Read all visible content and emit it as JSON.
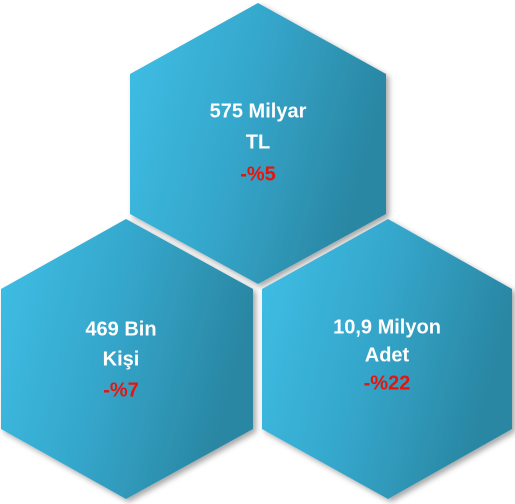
{
  "nodes": [
    {
      "lines": [
        "575 Milyar",
        "TL"
      ],
      "change": "-%5"
    },
    {
      "lines": [
        "469 Bin",
        "Kişi"
      ],
      "change": "-%7"
    },
    {
      "lines": [
        "10,9 Milyon",
        "Adet"
      ],
      "change": "-%22"
    }
  ]
}
